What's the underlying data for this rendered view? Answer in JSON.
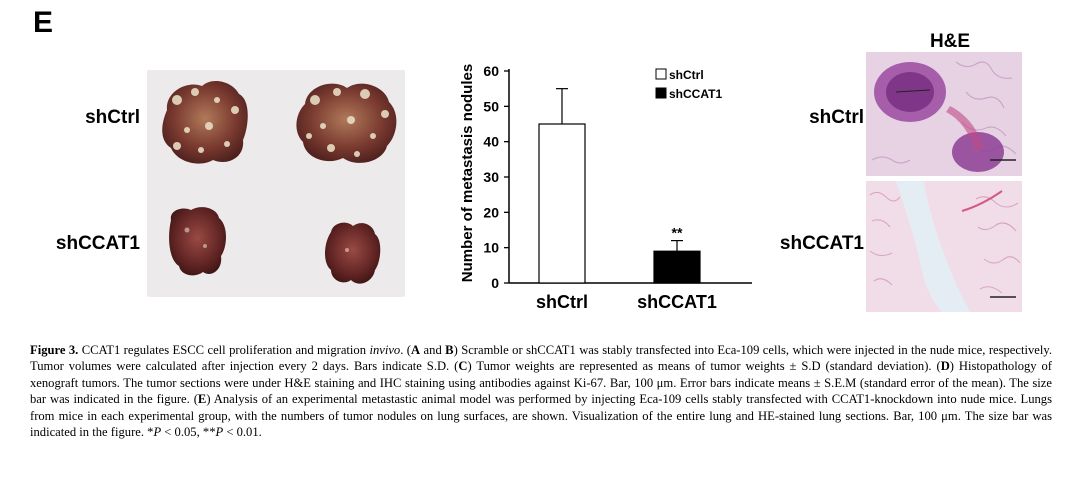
{
  "panel_letter": "E",
  "photo_panel": {
    "labels": [
      "shCtrl",
      "shCCAT1"
    ]
  },
  "histology_panel": {
    "title": "H&E",
    "labels": [
      "shCtrl",
      "shCCAT1"
    ]
  },
  "chart_data": {
    "type": "bar",
    "categories": [
      "shCtrl",
      "shCCAT1"
    ],
    "values": [
      45,
      9
    ],
    "errors": [
      10,
      3
    ],
    "bar_fills": [
      "#ffffff",
      "#000000"
    ],
    "significance": [
      "",
      "**"
    ],
    "ylabel": "Number of metastasis nodules",
    "xlabel": "",
    "ylim": [
      0,
      60
    ],
    "yticks": [
      "0",
      "10",
      "20",
      "30",
      "40",
      "50",
      "60"
    ],
    "legend": [
      {
        "label": "shCtrl",
        "fill": "#ffffff"
      },
      {
        "label": "shCCAT1",
        "fill": "#000000"
      }
    ],
    "legend_position": "top-right"
  },
  "caption": {
    "figure_label": "Figure 3.",
    "part1": " CCAT1 regulates ESCC cell proliferation and migration ",
    "invivo": "invivo",
    "part2": ". (",
    "A": "A",
    "and": " and ",
    "B": "B",
    "part3": ") Scramble or shCCAT1 was stably transfected into Eca-109 cells, which were injected in the nude mice, respectively. Tumor volumes were calculated after injection every 2 days. Bars indicate S.D. (",
    "C": "C",
    "part4": ") Tumor weights are represented as means of tumor weights ± S.D (standard deviation). (",
    "D": "D",
    "part5": ") Histopathology of xenograft tumors. The tumor sections were under H&E staining and IHC staining using antibodies against Ki-67. Bar, 100 μm. Error bars indicate means ± S.E.M (standard error of the mean). The size bar was indicated in the figure. (",
    "E": "E",
    "part6": ") Analysis of an experimental metastastic animal model was performed by injecting Eca-109 cells stably transfected with CCAT1-knockdown into nude mice. Lungs from mice in each experimental group, with the numbers of tumor nodules on lung surfaces, are shown. Visualization of the entire lung and HE-stained lung sections. Bar, 100 μm. The size bar was indicated in the figure. *",
    "P1": "P",
    "p_lt1": " < 0.05, **",
    "P2": "P",
    "p_lt2": " < 0.01."
  }
}
